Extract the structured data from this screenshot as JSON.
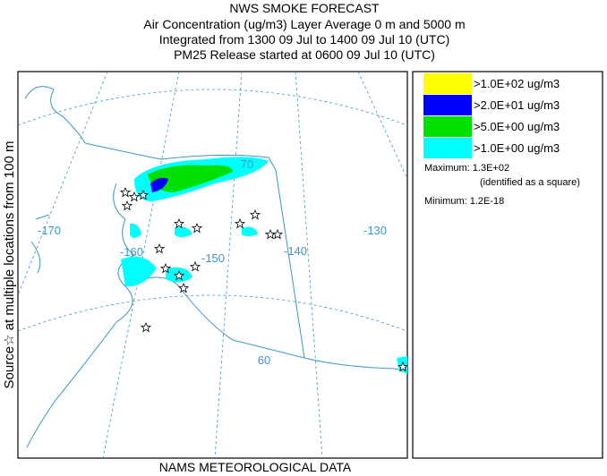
{
  "header": {
    "title": "NWS SMOKE FORECAST",
    "lines": [
      "Air Concentration (ug/m3) Layer Average    0 m and  5000 m",
      "Integrated from 1300 09 Jul to 1400 09 Jul 10 (UTC)",
      "PM25 Release started at 0600 09 Jul 10 (UTC)"
    ]
  },
  "side_label": "Source☆ at multiple locations   from   100 m",
  "footer": "NAMS METEOROLOGICAL DATA",
  "legend": {
    "items": [
      {
        "label": ">1.0E+02 ug/m3",
        "color": "#ffff00"
      },
      {
        "label": ">2.0E+01 ug/m3",
        "color": "#0000ff"
      },
      {
        "label": ">5.0E+00 ug/m3",
        "color": "#00e000"
      },
      {
        "label": ">1.0E+00 ug/m3",
        "color": "#00ffff"
      }
    ],
    "maximum": "Maximum: 1.3E+02",
    "maximum_note": "(identified as a square)",
    "minimum": "Minimum: 1.2E-18"
  },
  "map": {
    "labels": [
      "-170",
      "-160",
      "-150",
      "-140",
      "-130",
      "70",
      "60"
    ]
  }
}
